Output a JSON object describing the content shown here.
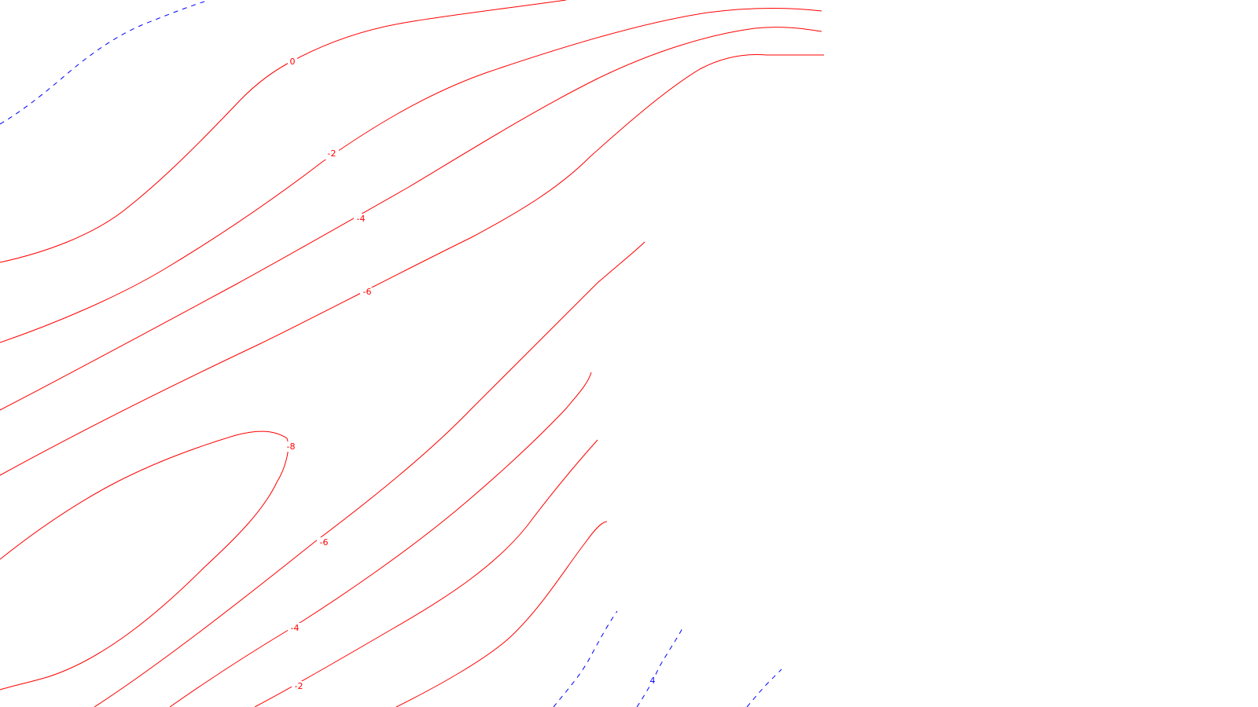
{
  "map": {
    "type": "contour",
    "styles": {
      "negative": {
        "color": "#ff0000",
        "dash": "solid"
      },
      "positive": {
        "color": "#0000ff",
        "dash": "dashed"
      }
    },
    "contours": [
      {
        "id": "pos-upper-left",
        "sign": "positive"
      },
      {
        "id": "neg-0",
        "sign": "negative"
      },
      {
        "id": "neg-2-upper",
        "sign": "negative"
      },
      {
        "id": "neg-4-upper",
        "sign": "negative"
      },
      {
        "id": "neg-6-upper",
        "sign": "negative"
      },
      {
        "id": "neg-8",
        "sign": "negative"
      },
      {
        "id": "neg-6-lower",
        "sign": "negative"
      },
      {
        "id": "neg-4-lower",
        "sign": "negative"
      },
      {
        "id": "neg-2-lower",
        "sign": "negative"
      },
      {
        "id": "neg-0-lower",
        "sign": "negative"
      },
      {
        "id": "pos-lower-a",
        "sign": "positive"
      },
      {
        "id": "pos-4-lower",
        "sign": "positive"
      },
      {
        "id": "pos-lower-c",
        "sign": "positive"
      }
    ],
    "labels": [
      {
        "id": "lbl-0",
        "text": "0",
        "sign": "negative"
      },
      {
        "id": "lbl-neg2-upper",
        "text": "-2",
        "sign": "negative"
      },
      {
        "id": "lbl-neg4-upper",
        "text": "-4",
        "sign": "negative"
      },
      {
        "id": "lbl-neg6-upper",
        "text": "-6",
        "sign": "negative"
      },
      {
        "id": "lbl-neg8",
        "text": "-8",
        "sign": "negative"
      },
      {
        "id": "lbl-neg6-lower",
        "text": "-6",
        "sign": "negative"
      },
      {
        "id": "lbl-neg4-lower",
        "text": "-4",
        "sign": "negative"
      },
      {
        "id": "lbl-neg2-lower",
        "text": "-2",
        "sign": "negative"
      },
      {
        "id": "lbl-4-lower",
        "text": "4",
        "sign": "positive"
      }
    ]
  }
}
